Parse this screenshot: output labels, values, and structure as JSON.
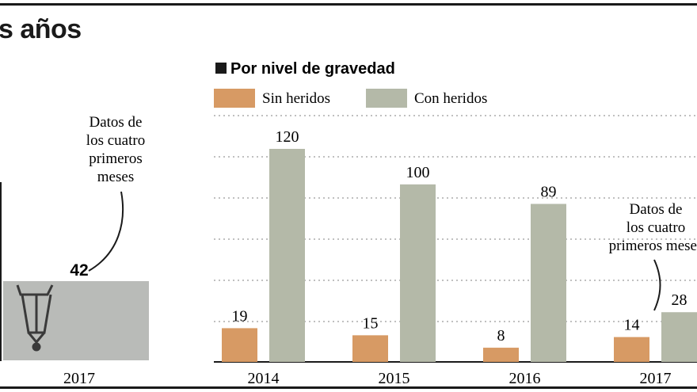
{
  "headline": "s años",
  "left_panel": {
    "annotation": [
      "Datos de",
      "los cuatro",
      "primeros",
      "meses"
    ],
    "value_label": "42",
    "year_label": "2017"
  },
  "colors": {
    "sin_heridos": "#d79a64",
    "con_heridos": "#b4b9a8",
    "photo_bg": "#b9bbb8",
    "grid": "#9a9a9a",
    "rules": "#1a1a1a"
  },
  "chart_data": {
    "type": "bar",
    "title": "Por nivel de gravedad",
    "categories": [
      "2014",
      "2015",
      "2016",
      "2017"
    ],
    "series": [
      {
        "name": "Sin heridos",
        "values": [
          19,
          15,
          8,
          14
        ]
      },
      {
        "name": "Con heridos",
        "values": [
          120,
          100,
          89,
          28
        ]
      }
    ],
    "ylim": [
      0,
      120
    ],
    "grid": true,
    "legend_position": "top-left",
    "annotation": {
      "category": "2017",
      "text": [
        "Datos de",
        "los cuatro",
        "primeros meses"
      ]
    }
  }
}
